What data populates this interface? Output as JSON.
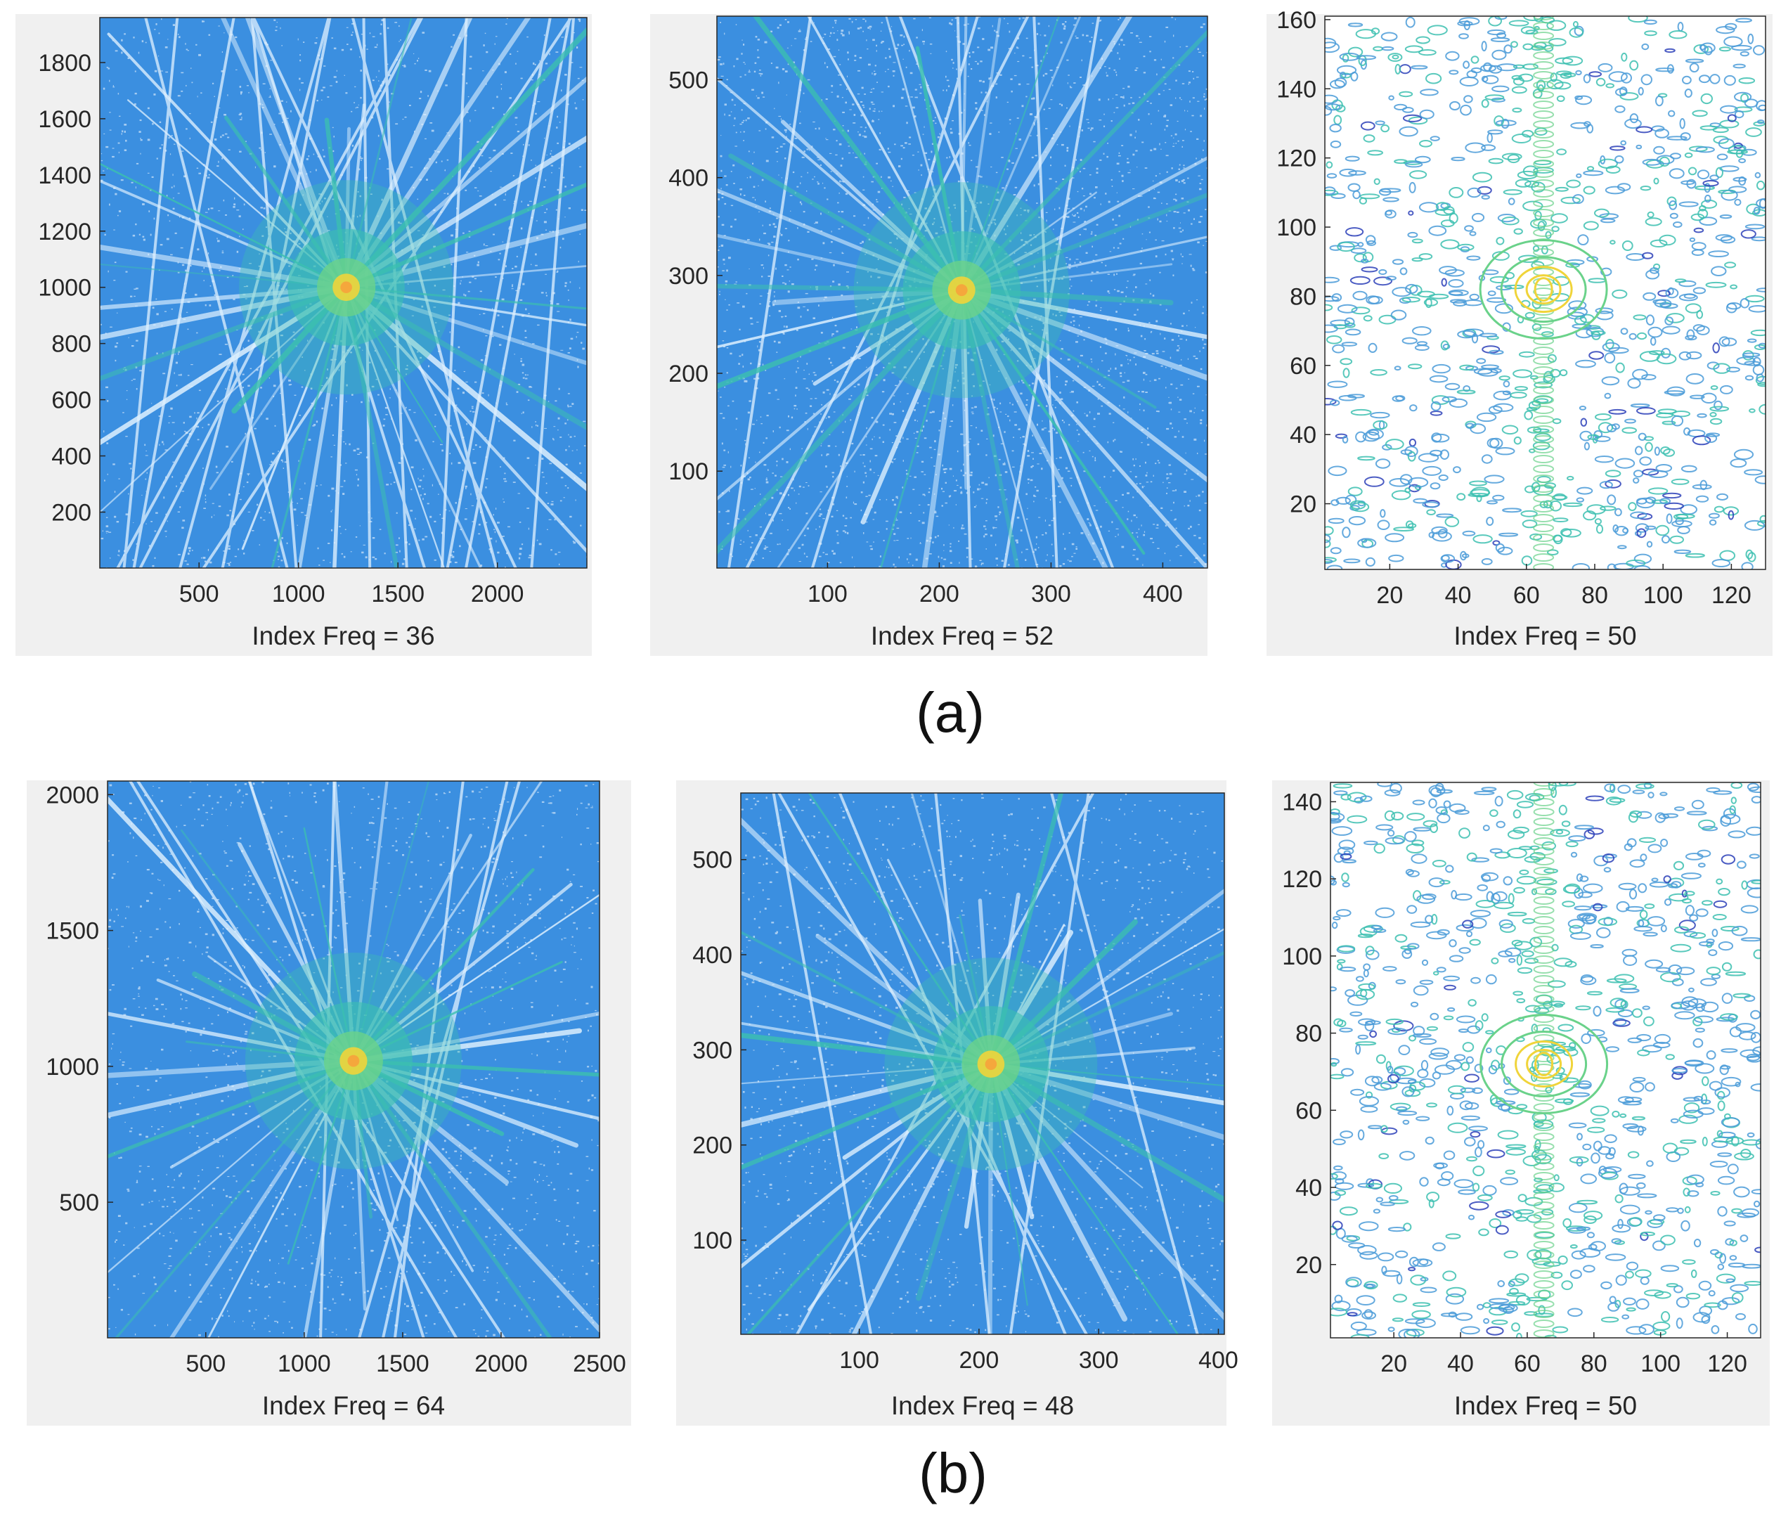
{
  "figure": {
    "row_labels": [
      "(a)",
      "(b)"
    ]
  },
  "colors": {
    "background_fill": "#3b8fe0",
    "speckle": "#ffffff",
    "ray": "#dff1ff",
    "teal": "#3cc0b0",
    "green": "#6ad28a",
    "yellow": "#f0d43a",
    "dark_blue": "#2b3fb8",
    "contour_blue": "#4a9bd8"
  },
  "chart_data": [
    {
      "id": "a1",
      "row": "a",
      "type": "heatmap",
      "style": "filled",
      "xlabel": "Index Freq = 36",
      "xlim": [
        1,
        2450
      ],
      "ylim": [
        1,
        1960
      ],
      "xticks": [
        500,
        1000,
        1500,
        2000
      ],
      "yticks": [
        200,
        400,
        600,
        800,
        1000,
        1200,
        1400,
        1600,
        1800
      ],
      "center": [
        1240,
        1000
      ]
    },
    {
      "id": "a2",
      "row": "a",
      "type": "heatmap",
      "style": "filled",
      "xlabel": "Index Freq = 52",
      "xlim": [
        1,
        440
      ],
      "ylim": [
        1,
        565
      ],
      "xticks": [
        100,
        200,
        300,
        400
      ],
      "yticks": [
        100,
        200,
        300,
        400,
        500
      ],
      "center": [
        220,
        285
      ]
    },
    {
      "id": "a3",
      "row": "a",
      "type": "heatmap",
      "style": "contour",
      "xlabel": "Index Freq = 50",
      "xlim": [
        1,
        130
      ],
      "ylim": [
        1,
        161
      ],
      "xticks": [
        20,
        40,
        60,
        80,
        100,
        120
      ],
      "yticks": [
        20,
        40,
        60,
        80,
        100,
        120,
        140,
        160
      ],
      "center": [
        65,
        82
      ]
    },
    {
      "id": "b1",
      "row": "b",
      "type": "heatmap",
      "style": "filled",
      "xlabel": "Index Freq = 64",
      "xlim": [
        1,
        2500
      ],
      "ylim": [
        1,
        2050
      ],
      "xticks": [
        500,
        1000,
        1500,
        2000,
        2500
      ],
      "yticks": [
        500,
        1000,
        1500,
        2000
      ],
      "center": [
        1250,
        1020
      ]
    },
    {
      "id": "b2",
      "row": "b",
      "type": "heatmap",
      "style": "filled",
      "xlabel": "Index Freq = 48",
      "xlim": [
        1,
        405
      ],
      "ylim": [
        1,
        570
      ],
      "xticks": [
        100,
        200,
        300,
        400
      ],
      "yticks": [
        100,
        200,
        300,
        400,
        500
      ],
      "center": [
        210,
        285
      ]
    },
    {
      "id": "b3",
      "row": "b",
      "type": "heatmap",
      "style": "contour",
      "xlabel": "Index Freq = 50",
      "xlim": [
        1,
        130
      ],
      "ylim": [
        1,
        145
      ],
      "xticks": [
        20,
        40,
        60,
        80,
        100,
        120
      ],
      "yticks": [
        20,
        40,
        60,
        80,
        100,
        120,
        140
      ],
      "center": [
        65,
        72
      ]
    }
  ]
}
